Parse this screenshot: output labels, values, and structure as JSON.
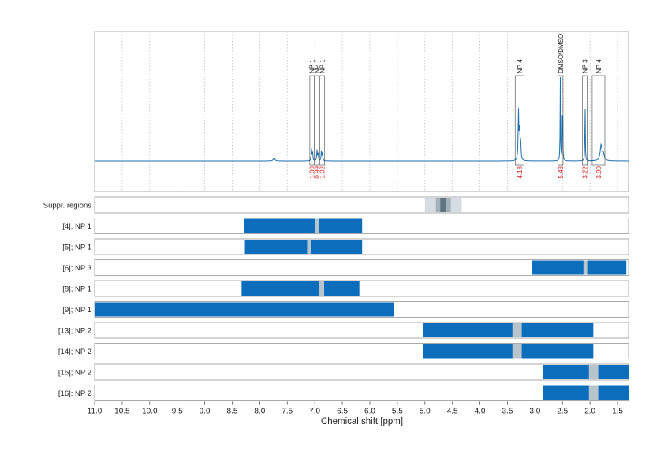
{
  "chart_data": {
    "type": "line",
    "xlabel": "Chemical shift [ppm]",
    "xlim": [
      11.0,
      1.3
    ],
    "x_reversed": true,
    "x_ticks": [
      "11.0",
      "10.5",
      "10.0",
      "9.5",
      "9.0",
      "8.5",
      "8.0",
      "7.5",
      "7.0",
      "6.5",
      "6.0",
      "5.5",
      "5.0",
      "4.5",
      "4.0",
      "3.5",
      "3.0",
      "2.5",
      "2.0",
      "1.5"
    ],
    "grid": "vertical dotted",
    "colors": {
      "spectrum": "#1a70b0",
      "region": "#0a6ebd",
      "suppressed": "#b8c4cc",
      "integral": "#d62020",
      "frame": "#aaaaaa"
    },
    "spectrum_peaks": [
      {
        "x": 7.74,
        "h": 0.03,
        "w": 0.018
      },
      {
        "x": 7.06,
        "h": 0.13,
        "w": 0.006
      },
      {
        "x": 7.04,
        "h": 0.1,
        "w": 0.006
      },
      {
        "x": 6.96,
        "h": 0.12,
        "w": 0.006
      },
      {
        "x": 6.94,
        "h": 0.09,
        "w": 0.006
      },
      {
        "x": 6.88,
        "h": 0.11,
        "w": 0.006
      },
      {
        "x": 6.86,
        "h": 0.09,
        "w": 0.006
      },
      {
        "x": 3.3,
        "h": 0.56,
        "w": 0.007
      },
      {
        "x": 3.28,
        "h": 0.38,
        "w": 0.007
      },
      {
        "x": 3.26,
        "h": 0.22,
        "w": 0.007
      },
      {
        "x": 2.54,
        "h": 0.96,
        "w": 0.004
      },
      {
        "x": 2.5,
        "h": 0.9,
        "w": 0.004
      },
      {
        "x": 2.09,
        "h": 0.73,
        "w": 0.004
      },
      {
        "x": 1.8,
        "h": 0.17,
        "w": 0.018
      },
      {
        "x": 1.76,
        "h": 0.08,
        "w": 0.02
      }
    ],
    "peak_groups": [
      {
        "label": "NP 1",
        "x1": 7.09,
        "x2": 7.01,
        "box_top": 0.8,
        "integral": "1.00"
      },
      {
        "label": "NP 1",
        "x1": 7.0,
        "x2": 6.92,
        "box_top": 0.8,
        "integral": "0.99"
      },
      {
        "label": "NP 1",
        "x1": 6.91,
        "x2": 6.82,
        "box_top": 0.8,
        "integral": "1.02"
      },
      {
        "label": "NP 4",
        "x1": 3.36,
        "x2": 3.2,
        "box_top": 0.8,
        "integral": "4.18"
      },
      {
        "label": "DMSO/DMSO",
        "x1": 2.58,
        "x2": 2.49,
        "box_top": 0.8,
        "integral": "5.43"
      },
      {
        "label": "NP 3",
        "x1": 2.14,
        "x2": 2.05,
        "box_top": 0.8,
        "integral": "3.22"
      },
      {
        "label": "NP 4",
        "x1": 1.96,
        "x2": 1.73,
        "box_top": 0.8,
        "integral": "3.90"
      }
    ],
    "rows": [
      {
        "label": "Suppr. regions",
        "type": "suppressed",
        "outer": [
          5.0,
          4.33
        ],
        "mid": [
          4.8,
          4.53
        ],
        "inner": [
          4.72,
          4.62
        ]
      },
      {
        "label": "[4]; NP 1",
        "start": 8.28,
        "end": 6.14,
        "gap": [
          6.99,
          6.92
        ]
      },
      {
        "label": "[5]; NP 1",
        "start": 8.27,
        "end": 6.14,
        "gap": [
          7.14,
          7.07
        ]
      },
      {
        "label": "[6]; NP 3",
        "start": 3.05,
        "end": 1.34,
        "gap": [
          2.12,
          2.05
        ]
      },
      {
        "label": "[8]; NP 1",
        "start": 8.33,
        "end": 6.19,
        "gap": [
          6.93,
          6.83
        ]
      },
      {
        "label": "[9]; NP 1",
        "start": 11.0,
        "end": 5.57,
        "gap": null
      },
      {
        "label": "[13]; NP 2",
        "start": 5.03,
        "end": 1.94,
        "gap": [
          3.41,
          3.24
        ]
      },
      {
        "label": "[14]; NP 2",
        "start": 5.03,
        "end": 1.94,
        "gap": [
          3.41,
          3.24
        ]
      },
      {
        "label": "[15]; NP 2",
        "start": 2.85,
        "end": 1.3,
        "gap": [
          2.02,
          1.85
        ]
      },
      {
        "label": "[16]; NP 2",
        "start": 2.85,
        "end": 1.3,
        "gap": [
          2.02,
          1.85
        ]
      }
    ]
  }
}
